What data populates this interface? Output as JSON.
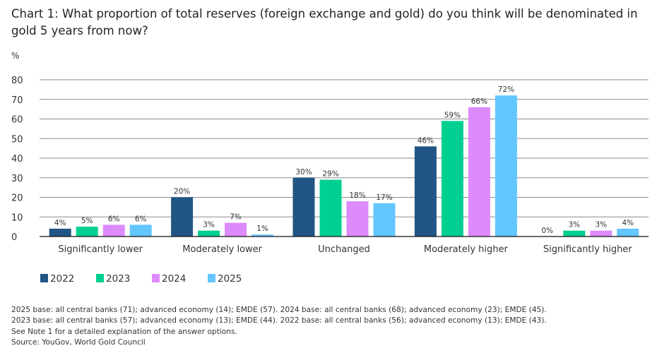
{
  "chart_data": {
    "type": "bar",
    "title": "Chart 1: What proportion of total reserves (foreign exchange and gold) do you think will be denominated in gold 5 years from now?",
    "ylabel": "%",
    "ylim": [
      0,
      80
    ],
    "yticks": [
      0,
      10,
      20,
      30,
      40,
      50,
      60,
      70,
      80
    ],
    "grid": true,
    "legend_position": "bottom-left",
    "categories": [
      "Significantly lower",
      "Moderately lower",
      "Unchanged",
      "Moderately higher",
      "Significantly higher"
    ],
    "series": [
      {
        "name": "2022",
        "color": "#215584",
        "values": [
          4,
          20,
          30,
          46,
          0
        ]
      },
      {
        "name": "2023",
        "color": "#00cf92",
        "values": [
          5,
          3,
          29,
          59,
          3
        ]
      },
      {
        "name": "2024",
        "color": "#dd8afc",
        "values": [
          6,
          7,
          18,
          66,
          3
        ]
      },
      {
        "name": "2025",
        "color": "#63c6fe",
        "values": [
          6,
          1,
          17,
          72,
          4
        ]
      }
    ]
  },
  "notes": [
    "2025 base: all central banks (71); advanced economy (14); EMDE (57). 2024 base: all central banks (68); advanced economy (23); EMDE (45).",
    "2023 base: all central banks (57); advanced economy (13); EMDE (44). 2022 base: all central banks (56); advanced economy (13); EMDE (43).",
    "See Note 1 for a detailed explanation of the answer options.",
    "Source: YouGov, World Gold Council"
  ]
}
